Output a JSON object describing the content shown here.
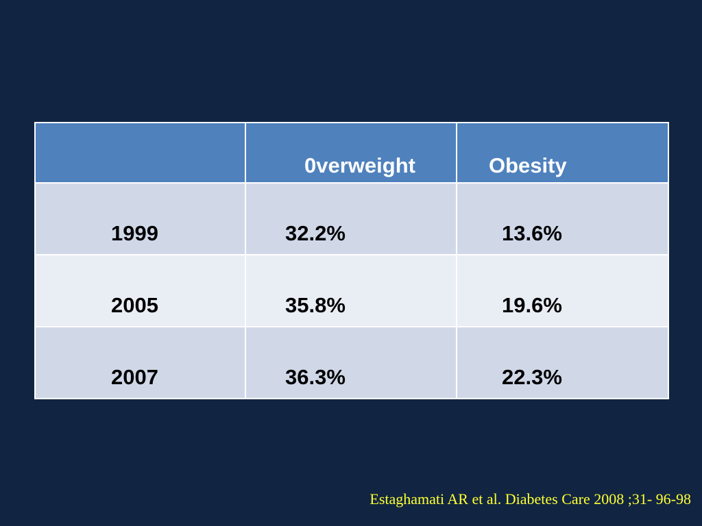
{
  "table": {
    "headers": [
      "",
      "0verweight",
      "Obesity"
    ],
    "rows": [
      {
        "year": "1999",
        "overweight": "32.2%",
        "obesity": "13.6%"
      },
      {
        "year": "2005",
        "overweight": "35.8%",
        "obesity": "19.6%"
      },
      {
        "year": "2007",
        "overweight": "36.3%",
        "obesity": "22.3%"
      }
    ]
  },
  "citation": "Estaghamati AR et al. Diabetes Care 2008 ;31- 96-98",
  "colors": {
    "background": "#112542",
    "header_fill": "#4f81bd",
    "row_band_dark": "#d0d8e8",
    "row_band_light": "#e9edf4",
    "citation_text": "#ffff33"
  }
}
